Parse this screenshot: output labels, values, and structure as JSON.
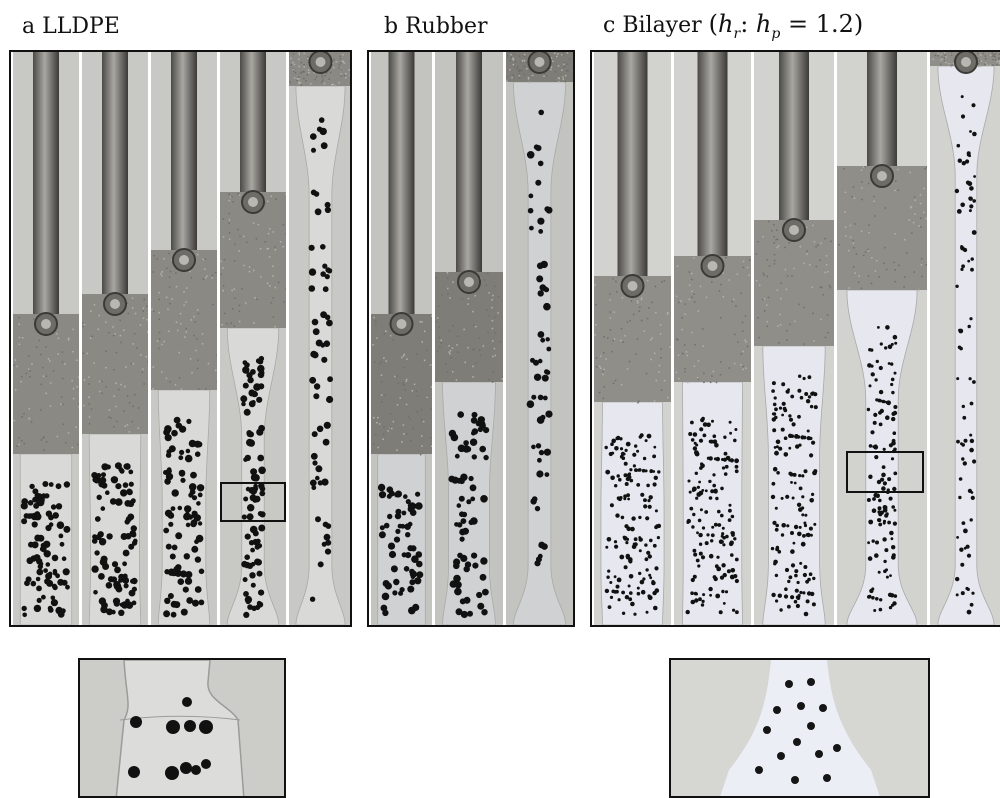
{
  "panels": [
    {
      "id": "a",
      "letter": "a",
      "title": "LLDPE",
      "strips": 5
    },
    {
      "id": "b",
      "letter": "b",
      "title": "Rubber",
      "strips": 3
    },
    {
      "id": "c",
      "letter": "c",
      "title": "Bilayer",
      "math_ratio": "h_r : h_p = 1.2",
      "strips": 5
    }
  ],
  "colors": {
    "rod": "#8f8d88",
    "clamp_lldpe": "#8a8984",
    "background_gray": "#c8c8c4",
    "film_lldpe": "#d9dad8",
    "film_bilayer": "#e6e7ef",
    "dot": "#111111"
  },
  "labels": {
    "a_prefix": "a",
    "a_name": "LLDPE",
    "b_prefix": "b",
    "b_name": "Rubber",
    "c_prefix": "c",
    "c_name": "Bilayer"
  }
}
